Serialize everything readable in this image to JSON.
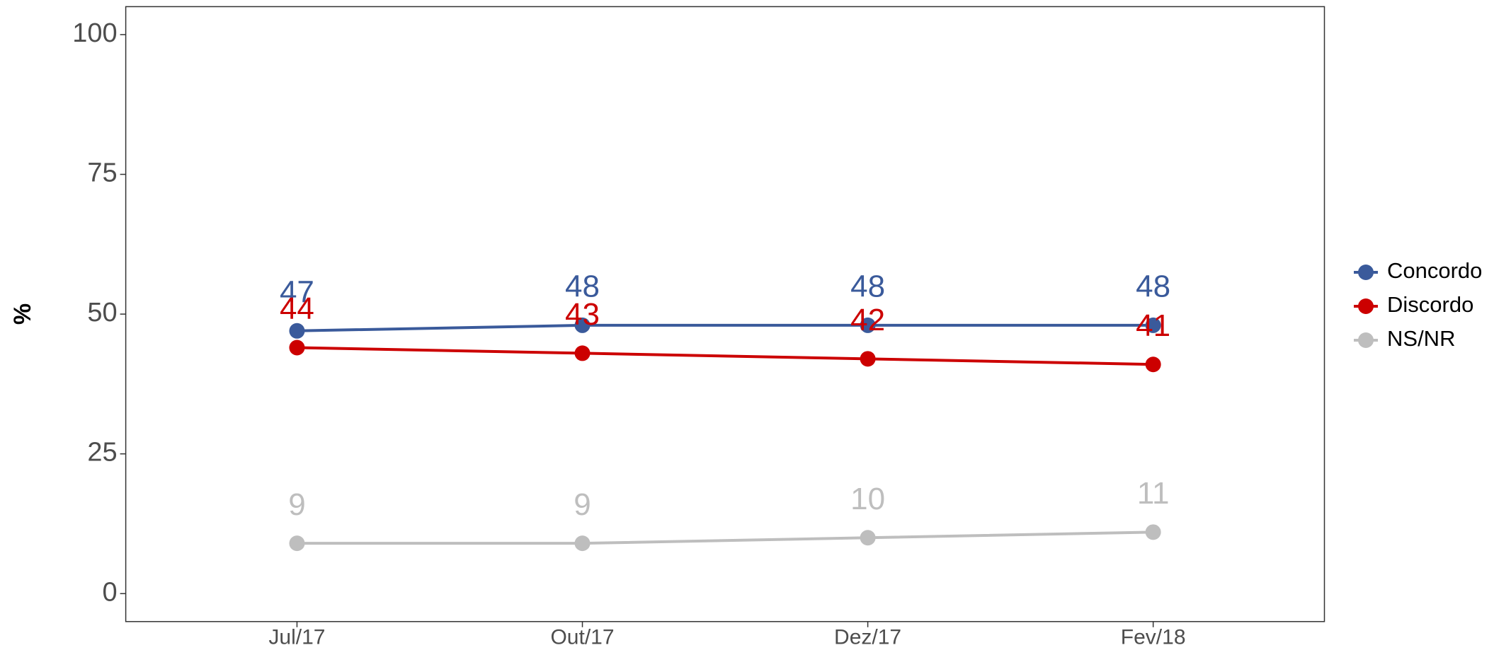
{
  "chart_data": {
    "type": "line",
    "y_label": "%",
    "categories": [
      "Jul/17",
      "Out/17",
      "Dez/17",
      "Fev/18"
    ],
    "series": [
      {
        "name": "Concordo",
        "color": "#3A5A9B",
        "values": [
          47,
          48,
          48,
          48
        ]
      },
      {
        "name": "Discordo",
        "color": "#CC0000",
        "values": [
          44,
          43,
          42,
          41
        ]
      },
      {
        "name": "NS/NR",
        "color": "#BEBEBE",
        "values": [
          9,
          9,
          10,
          11
        ]
      }
    ],
    "ylim": [
      -5,
      105
    ],
    "yticks": [
      0,
      25,
      50,
      75,
      100
    ],
    "grid": false,
    "legend": "right"
  }
}
